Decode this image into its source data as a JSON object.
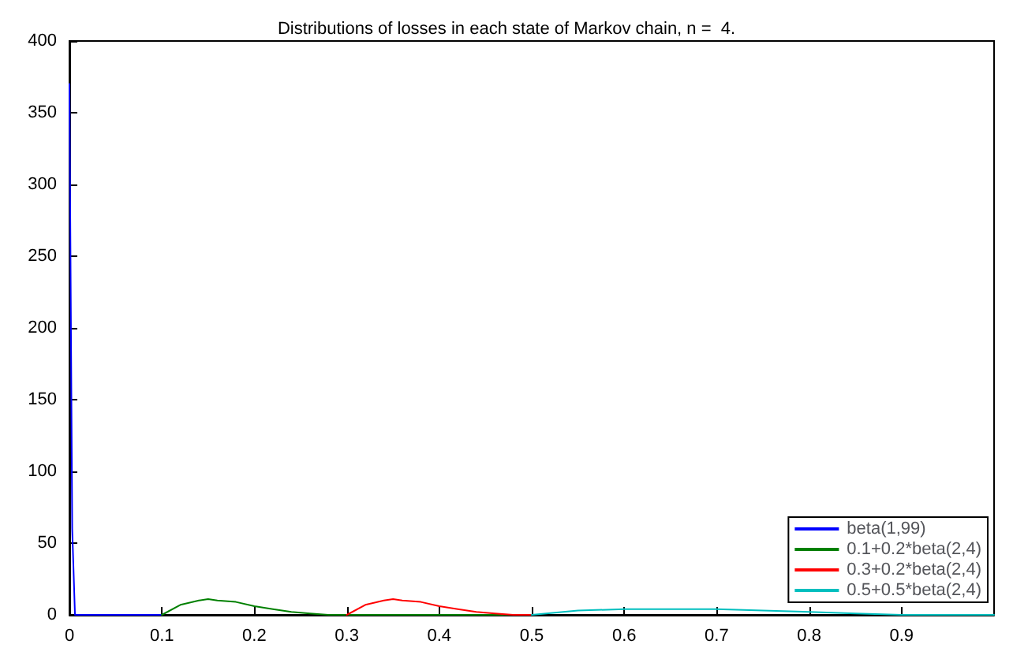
{
  "chart_data": {
    "type": "line",
    "title": "Distributions of losses in each state of Markov chain, n =  4.",
    "xlim": [
      0,
      1
    ],
    "xticks": [
      0,
      0.1,
      0.2,
      0.3,
      0.4,
      0.5,
      0.6,
      0.7,
      0.8,
      0.9
    ],
    "ylim": [
      0,
      400
    ],
    "yticks": [
      0,
      50,
      100,
      150,
      200,
      250,
      300,
      350,
      400
    ],
    "grid": false,
    "legend": "bottom right",
    "marker": "none",
    "line_style": "solid",
    "series": [
      {
        "name": "beta(1,99)",
        "color": "#0000ff",
        "x": [
          0,
          0.003,
          0.006,
          0.1
        ],
        "values": [
          370,
          60,
          0,
          0
        ]
      },
      {
        "name": "0.1+0.2*beta(2,4)",
        "color": "#008000",
        "x": [
          0.1,
          0.12,
          0.14,
          0.15,
          0.16,
          0.18,
          0.2,
          0.22,
          0.24,
          0.26,
          0.28,
          0.3,
          0.5
        ],
        "values": [
          0,
          7,
          10,
          11,
          10,
          9,
          6,
          4,
          2,
          1,
          0,
          0,
          0
        ]
      },
      {
        "name": "0.3+0.2*beta(2,4)",
        "color": "#ff0000",
        "x": [
          0.3,
          0.32,
          0.34,
          0.35,
          0.36,
          0.38,
          0.4,
          0.42,
          0.44,
          0.46,
          0.48,
          0.5
        ],
        "values": [
          0,
          7,
          10,
          11,
          10,
          9,
          6,
          4,
          2,
          1,
          0,
          0
        ]
      },
      {
        "name": "0.5+0.5*beta(2,4)",
        "color": "#00bfbf",
        "x": [
          0.5,
          0.55,
          0.6,
          0.625,
          0.65,
          0.7,
          0.75,
          0.8,
          0.85,
          0.9,
          0.95,
          1
        ],
        "values": [
          0,
          3,
          4,
          4,
          4,
          4,
          3,
          2,
          1,
          0,
          0,
          0
        ]
      }
    ]
  }
}
